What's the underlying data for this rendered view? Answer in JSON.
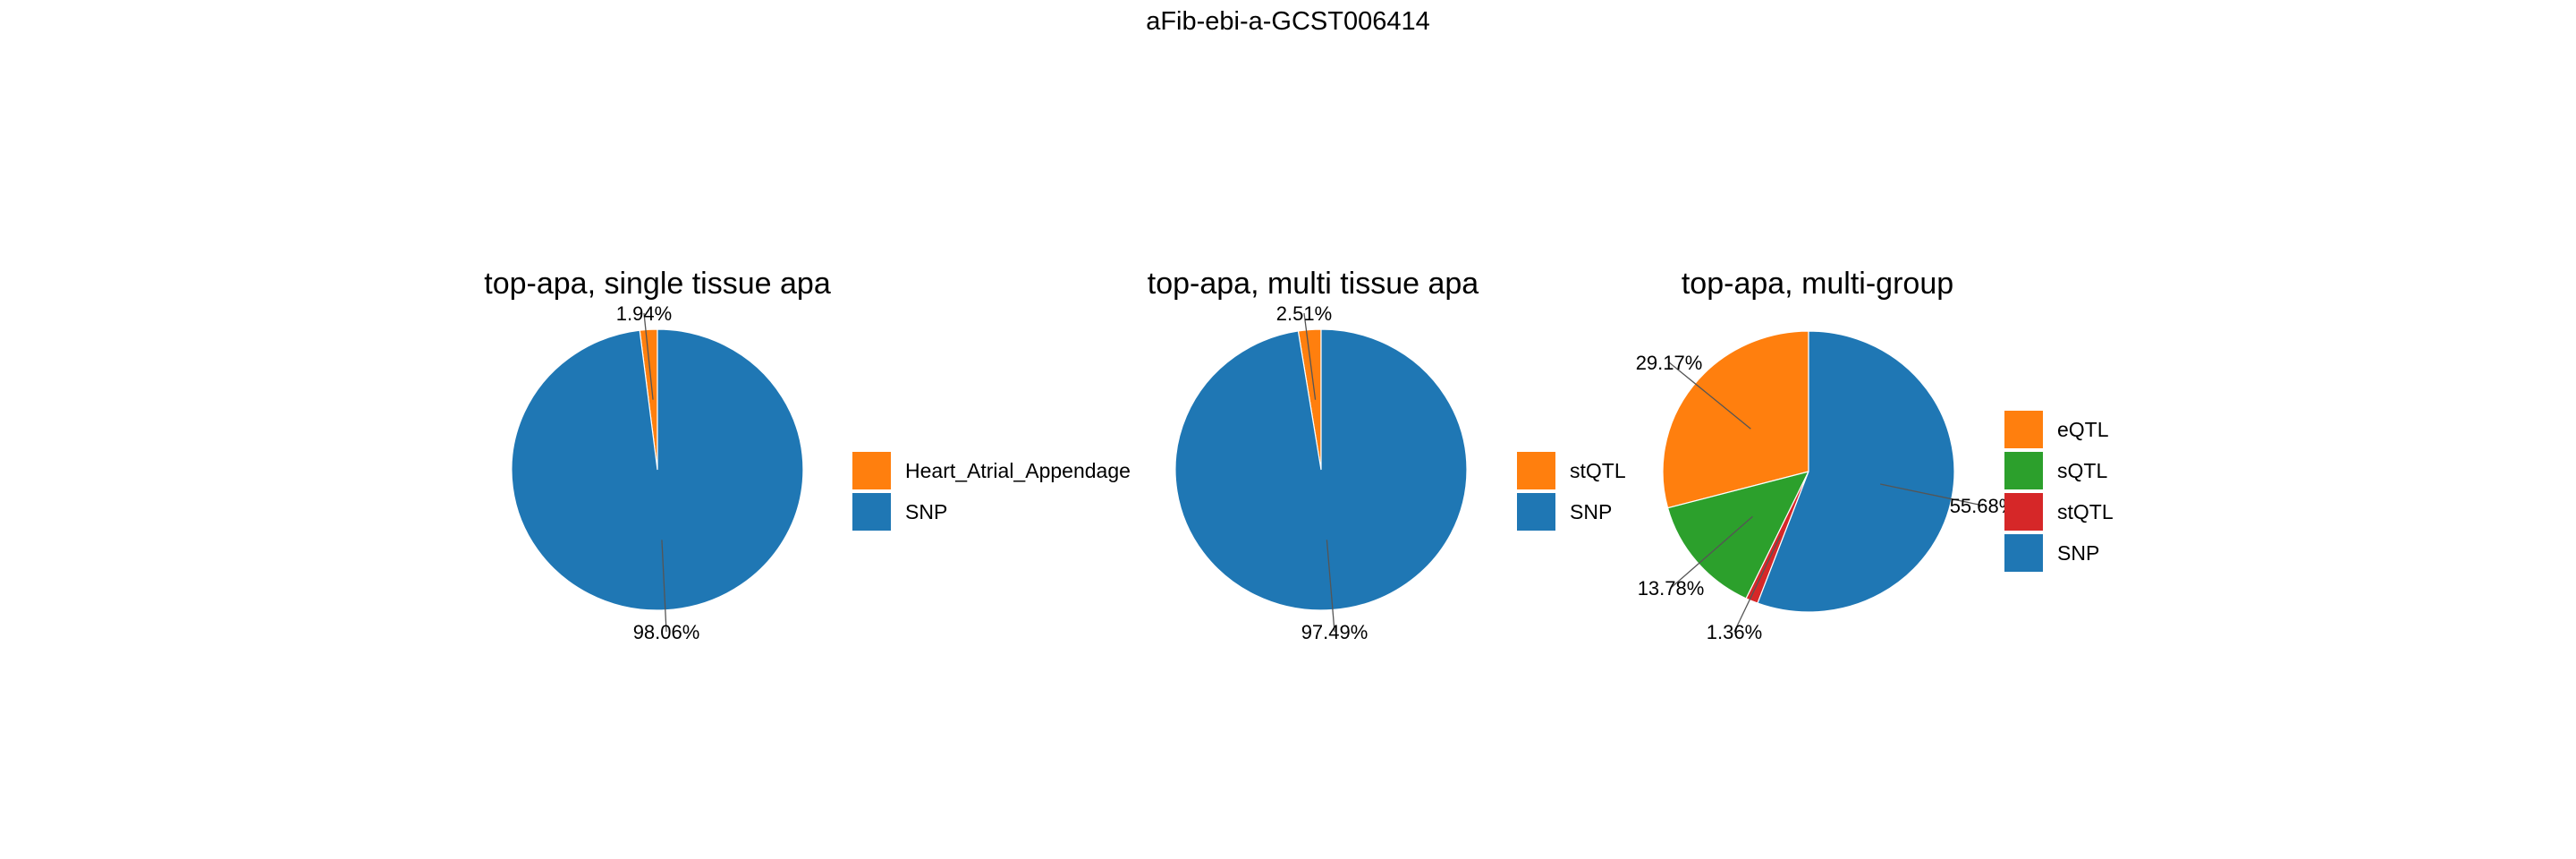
{
  "figure": {
    "title": "aFib-ebi-a-GCST006414"
  },
  "chart_data": [
    {
      "type": "pie",
      "title": "top-apa, single tissue apa",
      "slices": [
        {
          "name": "Heart_Atrial_Appendage",
          "value": 1.94,
          "label": "1.94%",
          "color": "#ff7f0e"
        },
        {
          "name": "SNP",
          "value": 98.06,
          "label": "98.06%",
          "color": "#1f77b4"
        }
      ],
      "legend": [
        {
          "name": "Heart_Atrial_Appendage",
          "color": "#ff7f0e"
        },
        {
          "name": "SNP",
          "color": "#1f77b4"
        }
      ],
      "legend_position": "right"
    },
    {
      "type": "pie",
      "title": "top-apa, multi tissue apa",
      "slices": [
        {
          "name": "stQTL",
          "value": 2.51,
          "label": "2.51%",
          "color": "#ff7f0e"
        },
        {
          "name": "SNP",
          "value": 97.49,
          "label": "97.49%",
          "color": "#1f77b4"
        }
      ],
      "legend": [
        {
          "name": "stQTL",
          "color": "#ff7f0e"
        },
        {
          "name": "SNP",
          "color": "#1f77b4"
        }
      ],
      "legend_position": "right"
    },
    {
      "type": "pie",
      "title": "top-apa, multi-group",
      "slices": [
        {
          "name": "eQTL",
          "value": 29.17,
          "label": "29.17%",
          "color": "#ff7f0e"
        },
        {
          "name": "sQTL",
          "value": 13.78,
          "label": "13.78%",
          "color": "#2ca02c"
        },
        {
          "name": "stQTL",
          "value": 1.36,
          "label": "1.36%",
          "color": "#d62728"
        },
        {
          "name": "SNP",
          "value": 55.68,
          "label": "55.68%",
          "color": "#1f77b4"
        }
      ],
      "legend": [
        {
          "name": "eQTL",
          "color": "#ff7f0e"
        },
        {
          "name": "sQTL",
          "color": "#2ca02c"
        },
        {
          "name": "stQTL",
          "color": "#d62728"
        },
        {
          "name": "SNP",
          "color": "#1f77b4"
        }
      ],
      "legend_position": "right"
    }
  ]
}
